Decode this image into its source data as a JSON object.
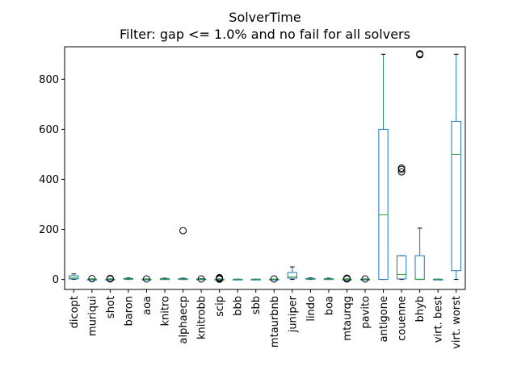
{
  "chart_data": {
    "type": "box",
    "title": "SolverTime",
    "subtitle": "Filter: gap <= 1.0% and no fail for all solvers",
    "xlabel": "",
    "ylabel": "",
    "ylim": [
      -40,
      930
    ],
    "yticks": [
      0,
      200,
      400,
      600,
      800
    ],
    "grid": false,
    "colors": {
      "box": "#1f77b4",
      "median": "#2ca02c",
      "flier": "#000000",
      "axis": "#000000"
    },
    "categories": [
      "dicopt",
      "muriqui",
      "shot",
      "baron",
      "aoa",
      "knitro",
      "alphaecp",
      "knitrobb",
      "scip",
      "bbb",
      "sbb",
      "mtaurbnb",
      "juniper",
      "lindo",
      "boa",
      "mtaurqg",
      "pavito",
      "antigone",
      "couenne",
      "bhyb",
      "virt. best",
      "virt. worst"
    ],
    "series": [
      {
        "label": "dicopt",
        "whislo": 0,
        "q1": 2,
        "med": 6,
        "q3": 15,
        "whishi": 22,
        "fliers": []
      },
      {
        "label": "muriqui",
        "whislo": 0,
        "q1": 0,
        "med": 0.5,
        "q3": 1,
        "whishi": 2,
        "fliers": [
          3
        ]
      },
      {
        "label": "shot",
        "whislo": 0,
        "q1": 0,
        "med": 0.5,
        "q3": 1,
        "whishi": 2,
        "fliers": [
          2,
          4
        ]
      },
      {
        "label": "baron",
        "whislo": 0,
        "q1": 1,
        "med": 2,
        "q3": 4,
        "whishi": 6,
        "fliers": []
      },
      {
        "label": "aoa",
        "whislo": 0,
        "q1": 0,
        "med": 0.5,
        "q3": 1,
        "whishi": 2,
        "fliers": [
          2
        ]
      },
      {
        "label": "knitro",
        "whislo": 0,
        "q1": 1,
        "med": 2,
        "q3": 3,
        "whishi": 5,
        "fliers": []
      },
      {
        "label": "alphaecp",
        "whislo": 0,
        "q1": 1,
        "med": 2,
        "q3": 3,
        "whishi": 5,
        "fliers": [
          195
        ]
      },
      {
        "label": "knitrobb",
        "whislo": 0,
        "q1": 0,
        "med": 1,
        "q3": 2,
        "whishi": 3,
        "fliers": [
          2
        ]
      },
      {
        "label": "scip",
        "whislo": 0,
        "q1": 0,
        "med": 0.5,
        "q3": 1,
        "whishi": 2,
        "fliers": [
          1,
          4,
          7
        ]
      },
      {
        "label": "bbb",
        "whislo": 0,
        "q1": 0,
        "med": 0.5,
        "q3": 1,
        "whishi": 1,
        "fliers": []
      },
      {
        "label": "sbb",
        "whislo": 0,
        "q1": 0,
        "med": 0.5,
        "q3": 1,
        "whishi": 1,
        "fliers": []
      },
      {
        "label": "mtaurbnb",
        "whislo": 0,
        "q1": 0,
        "med": 0.5,
        "q3": 1,
        "whishi": 1,
        "fliers": [
          2
        ]
      },
      {
        "label": "juniper",
        "whislo": 0,
        "q1": 5,
        "med": 10,
        "q3": 28,
        "whishi": 50,
        "fliers": []
      },
      {
        "label": "lindo",
        "whislo": 0,
        "q1": 1,
        "med": 2,
        "q3": 4,
        "whishi": 6,
        "fliers": []
      },
      {
        "label": "boa",
        "whislo": 0,
        "q1": 0,
        "med": 1,
        "q3": 3,
        "whishi": 5,
        "fliers": []
      },
      {
        "label": "mtaurqg",
        "whislo": 0,
        "q1": 0,
        "med": 0.5,
        "q3": 1,
        "whishi": 2,
        "fliers": [
          2,
          5
        ]
      },
      {
        "label": "pavito",
        "whislo": 0,
        "q1": 0,
        "med": 0.5,
        "q3": 1,
        "whishi": 2,
        "fliers": [
          2
        ]
      },
      {
        "label": "antigone",
        "whislo": 0,
        "q1": 0,
        "med": 258,
        "q3": 600,
        "whishi": 900,
        "fliers": []
      },
      {
        "label": "couenne",
        "whislo": 0,
        "q1": 2,
        "med": 20,
        "q3": 95,
        "whishi": 95,
        "fliers": [
          430,
          440,
          445
        ]
      },
      {
        "label": "bhyb",
        "whislo": 0,
        "q1": 0,
        "med": 1,
        "q3": 95,
        "whishi": 205,
        "fliers": [
          898,
          900,
          902
        ]
      },
      {
        "label": "virt. best",
        "whislo": 0,
        "q1": 0,
        "med": 0.5,
        "q3": 1,
        "whishi": 1,
        "fliers": []
      },
      {
        "label": "virt. worst",
        "whislo": 0,
        "q1": 35,
        "med": 500,
        "q3": 632,
        "whishi": 900,
        "fliers": []
      }
    ]
  }
}
